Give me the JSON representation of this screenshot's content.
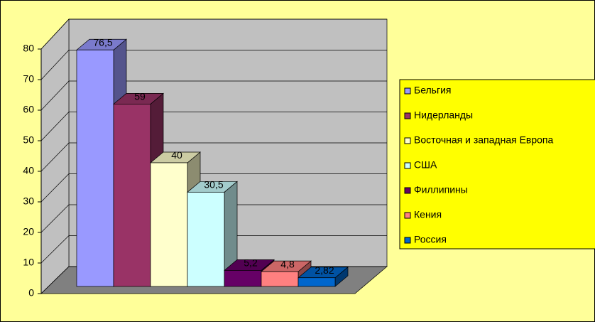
{
  "chart_data": {
    "type": "bar3d",
    "categories": [
      null
    ],
    "series": [
      {
        "name": "Бельгия",
        "color": "#9999ff",
        "values": [
          76.5
        ],
        "value_labels": [
          "76,5"
        ]
      },
      {
        "name": "Нидерланды",
        "color": "#993366",
        "values": [
          59
        ]
      },
      {
        "name": "Восточная и западная Европа",
        "color": "#ffffcc",
        "values": [
          40
        ]
      },
      {
        "name": "США",
        "color": "#ccffff",
        "values": [
          30.5
        ],
        "value_labels": [
          "30,5"
        ]
      },
      {
        "name": "Филлипины",
        "color": "#660066",
        "values": [
          5.2
        ],
        "value_labels": [
          "5,2"
        ]
      },
      {
        "name": "Кения",
        "color": "#ff8080",
        "values": [
          4.8
        ],
        "value_labels": [
          "4,8"
        ]
      },
      {
        "name": "Россия",
        "color": "#0066cc",
        "values": [
          2.82
        ],
        "value_labels": [
          "2,82"
        ]
      }
    ],
    "ylim": [
      0,
      80
    ],
    "yticks": [
      0,
      10,
      20,
      30,
      40,
      50,
      60,
      70,
      80
    ],
    "grid": true,
    "legend": "right"
  }
}
